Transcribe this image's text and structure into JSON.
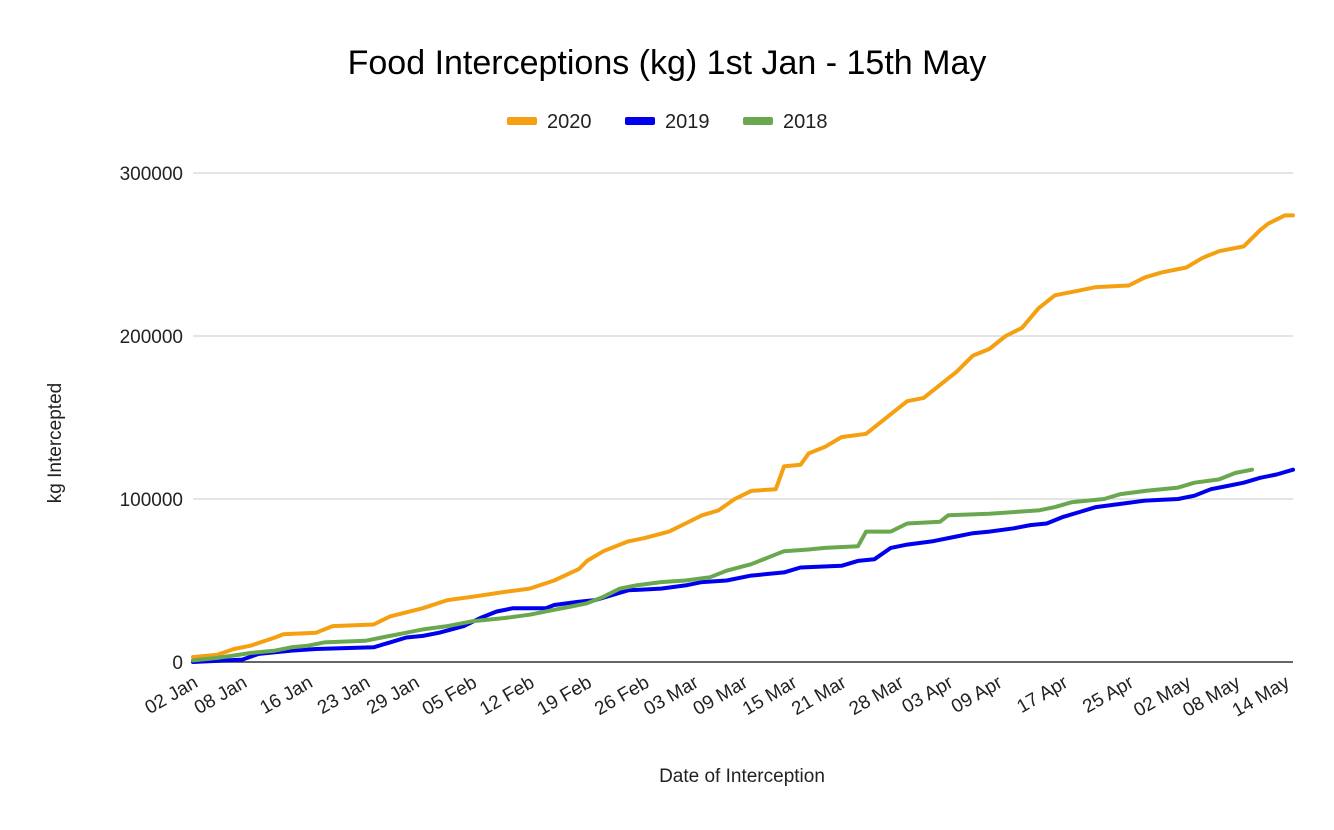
{
  "chart_data": {
    "type": "line",
    "title": "Food Interceptions (kg) 1st Jan - 15th May",
    "xlabel": "Date of Interception",
    "ylabel": "kg Intercepted",
    "ylim": [
      0,
      300000
    ],
    "yticks": [
      "0",
      "100000",
      "200000",
      "300000"
    ],
    "grid": true,
    "legend_position": "top",
    "x_tick_labels": [
      "02 Jan",
      "08 Jan",
      "16 Jan",
      "23 Jan",
      "29 Jan",
      "05 Feb",
      "12 Feb",
      "19 Feb",
      "26 Feb",
      "03 Mar",
      "09 Mar",
      "15 Mar",
      "21 Mar",
      "28 Mar",
      "03 Apr",
      "09 Apr",
      "17 Apr",
      "25 Apr",
      "02 May",
      "08 May",
      "14 May"
    ],
    "x_range": [
      "02 Jan",
      "15 May"
    ],
    "series": [
      {
        "name": "2020",
        "color": "#f4a011",
        "points": [
          [
            "02 Jan",
            3000
          ],
          [
            "05 Jan",
            4500
          ],
          [
            "07 Jan",
            8000
          ],
          [
            "09 Jan",
            10000
          ],
          [
            "12 Jan",
            15000
          ],
          [
            "13 Jan",
            17000
          ],
          [
            "17 Jan",
            18000
          ],
          [
            "19 Jan",
            22000
          ],
          [
            "24 Jan",
            23000
          ],
          [
            "26 Jan",
            28000
          ],
          [
            "30 Jan",
            33000
          ],
          [
            "02 Feb",
            38000
          ],
          [
            "05 Feb",
            40000
          ],
          [
            "09 Feb",
            43000
          ],
          [
            "12 Feb",
            45000
          ],
          [
            "15 Feb",
            50000
          ],
          [
            "18 Feb",
            57000
          ],
          [
            "19 Feb",
            62000
          ],
          [
            "21 Feb",
            68000
          ],
          [
            "24 Feb",
            74000
          ],
          [
            "26 Feb",
            76000
          ],
          [
            "29 Feb",
            80000
          ],
          [
            "02 Mar",
            85000
          ],
          [
            "04 Mar",
            90000
          ],
          [
            "06 Mar",
            93000
          ],
          [
            "08 Mar",
            100000
          ],
          [
            "10 Mar",
            105000
          ],
          [
            "13 Mar",
            106000
          ],
          [
            "14 Mar",
            120000
          ],
          [
            "16 Mar",
            121000
          ],
          [
            "17 Mar",
            128000
          ],
          [
            "19 Mar",
            132000
          ],
          [
            "21 Mar",
            138000
          ],
          [
            "24 Mar",
            140000
          ],
          [
            "27 Mar",
            152000
          ],
          [
            "29 Mar",
            160000
          ],
          [
            "31 Mar",
            162000
          ],
          [
            "02 Apr",
            170000
          ],
          [
            "04 Apr",
            178000
          ],
          [
            "06 Apr",
            188000
          ],
          [
            "08 Apr",
            192000
          ],
          [
            "10 Apr",
            200000
          ],
          [
            "12 Apr",
            205000
          ],
          [
            "14 Apr",
            217000
          ],
          [
            "16 Apr",
            225000
          ],
          [
            "19 Apr",
            228000
          ],
          [
            "21 Apr",
            230000
          ],
          [
            "25 Apr",
            231000
          ],
          [
            "27 Apr",
            236000
          ],
          [
            "29 Apr",
            239000
          ],
          [
            "02 May",
            242000
          ],
          [
            "04 May",
            248000
          ],
          [
            "06 May",
            252000
          ],
          [
            "09 May",
            255000
          ],
          [
            "11 May",
            265000
          ],
          [
            "12 May",
            269000
          ],
          [
            "14 May",
            274000
          ],
          [
            "15 May",
            274000
          ]
        ]
      },
      {
        "name": "2019",
        "color": "#0000ee",
        "points": [
          [
            "02 Jan",
            0
          ],
          [
            "08 Jan",
            1500
          ],
          [
            "10 Jan",
            5000
          ],
          [
            "14 Jan",
            7000
          ],
          [
            "17 Jan",
            8000
          ],
          [
            "24 Jan",
            9000
          ],
          [
            "26 Jan",
            12000
          ],
          [
            "28 Jan",
            15000
          ],
          [
            "30 Jan",
            16000
          ],
          [
            "01 Feb",
            18000
          ],
          [
            "04 Feb",
            22000
          ],
          [
            "06 Feb",
            27000
          ],
          [
            "08 Feb",
            31000
          ],
          [
            "10 Feb",
            33000
          ],
          [
            "14 Feb",
            33000
          ],
          [
            "15 Feb",
            35000
          ],
          [
            "18 Feb",
            37000
          ],
          [
            "20 Feb",
            38000
          ],
          [
            "22 Feb",
            41000
          ],
          [
            "24 Feb",
            44000
          ],
          [
            "28 Feb",
            45000
          ],
          [
            "02 Mar",
            47000
          ],
          [
            "04 Mar",
            49000
          ],
          [
            "07 Mar",
            50000
          ],
          [
            "10 Mar",
            53000
          ],
          [
            "14 Mar",
            55000
          ],
          [
            "16 Mar",
            58000
          ],
          [
            "21 Mar",
            59000
          ],
          [
            "23 Mar",
            62000
          ],
          [
            "25 Mar",
            63000
          ],
          [
            "27 Mar",
            70000
          ],
          [
            "29 Mar",
            72000
          ],
          [
            "01 Apr",
            74000
          ],
          [
            "04 Apr",
            77000
          ],
          [
            "06 Apr",
            79000
          ],
          [
            "08 Apr",
            80000
          ],
          [
            "11 Apr",
            82000
          ],
          [
            "13 Apr",
            84000
          ],
          [
            "15 Apr",
            85000
          ],
          [
            "17 Apr",
            89000
          ],
          [
            "19 Apr",
            92000
          ],
          [
            "21 Apr",
            95000
          ],
          [
            "24 Apr",
            97000
          ],
          [
            "27 Apr",
            99000
          ],
          [
            "01 May",
            100000
          ],
          [
            "03 May",
            102000
          ],
          [
            "05 May",
            106000
          ],
          [
            "07 May",
            108000
          ],
          [
            "09 May",
            110000
          ],
          [
            "11 May",
            113000
          ],
          [
            "13 May",
            115000
          ],
          [
            "15 May",
            118000
          ]
        ]
      },
      {
        "name": "2018",
        "color": "#6aa84f",
        "points": [
          [
            "02 Jan",
            1000
          ],
          [
            "05 Jan",
            2500
          ],
          [
            "07 Jan",
            4000
          ],
          [
            "09 Jan",
            5500
          ],
          [
            "12 Jan",
            7000
          ],
          [
            "14 Jan",
            9000
          ],
          [
            "16 Jan",
            10000
          ],
          [
            "18 Jan",
            12000
          ],
          [
            "23 Jan",
            13000
          ],
          [
            "25 Jan",
            15000
          ],
          [
            "28 Jan",
            18000
          ],
          [
            "30 Jan",
            20000
          ],
          [
            "02 Feb",
            22000
          ],
          [
            "05 Feb",
            25000
          ],
          [
            "09 Feb",
            27000
          ],
          [
            "12 Feb",
            29000
          ],
          [
            "15 Feb",
            32000
          ],
          [
            "17 Feb",
            34000
          ],
          [
            "19 Feb",
            36000
          ],
          [
            "21 Feb",
            40000
          ],
          [
            "23 Feb",
            45000
          ],
          [
            "25 Feb",
            47000
          ],
          [
            "28 Feb",
            49000
          ],
          [
            "02 Mar",
            50000
          ],
          [
            "05 Mar",
            52000
          ],
          [
            "07 Mar",
            56000
          ],
          [
            "10 Mar",
            60000
          ],
          [
            "12 Mar",
            64000
          ],
          [
            "14 Mar",
            68000
          ],
          [
            "17 Mar",
            69000
          ],
          [
            "19 Mar",
            70000
          ],
          [
            "23 Mar",
            71000
          ],
          [
            "24 Mar",
            80000
          ],
          [
            "27 Mar",
            80000
          ],
          [
            "29 Mar",
            85000
          ],
          [
            "02 Apr",
            86000
          ],
          [
            "03 Apr",
            90000
          ],
          [
            "08 Apr",
            91000
          ],
          [
            "14 Apr",
            93000
          ],
          [
            "16 Apr",
            95000
          ],
          [
            "18 Apr",
            98000
          ],
          [
            "22 Apr",
            100000
          ],
          [
            "24 Apr",
            103000
          ],
          [
            "27 Apr",
            105000
          ],
          [
            "01 May",
            107000
          ],
          [
            "03 May",
            110000
          ],
          [
            "06 May",
            112000
          ],
          [
            "08 May",
            116000
          ],
          [
            "10 May",
            118000
          ]
        ]
      }
    ]
  }
}
